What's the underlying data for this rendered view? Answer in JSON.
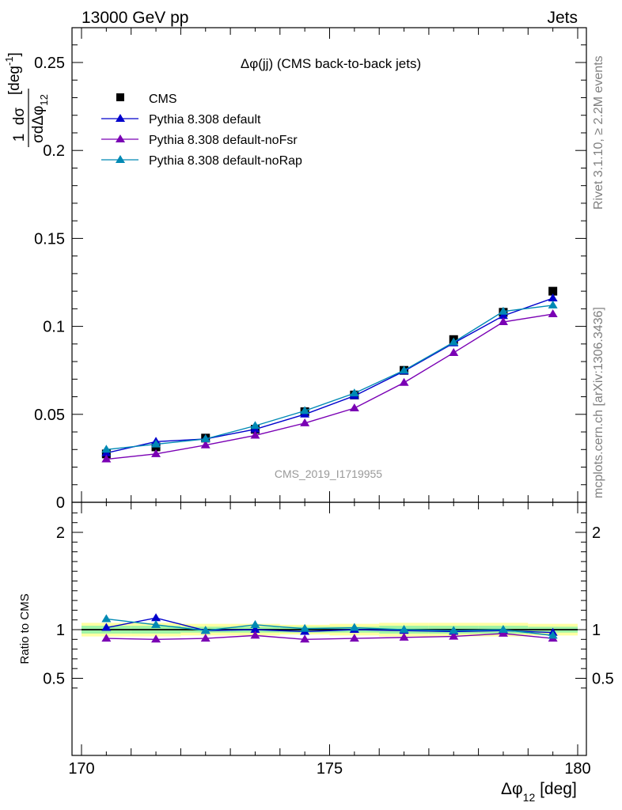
{
  "header": {
    "left": "13000 GeV pp",
    "right": "Jets"
  },
  "side_labels": {
    "rivet": "Rivet 3.1.10, ≥ 2.2M events",
    "mcplots": "mcplots.cern.ch [arXiv:1306.3436]"
  },
  "watermark": "CMS_2019_I1719955",
  "chart_data": [
    {
      "type": "line",
      "title": "Δφ(jj) (CMS back-to-back jets)",
      "xlabel": "Δφ12 [deg]",
      "ylabel": "1/σ dσ/dΔφ12 [deg⁻¹]",
      "xlim": [
        170,
        180
      ],
      "ylim": [
        0,
        0.27
      ],
      "x_ticks": [
        "170",
        "175",
        "180"
      ],
      "y_ticks": [
        "0",
        "0.05",
        "0.1",
        "0.15",
        "0.2",
        "0.25"
      ],
      "x": [
        170.5,
        171.5,
        172.5,
        173.5,
        174.5,
        175.5,
        176.5,
        177.5,
        178.5,
        179.5
      ],
      "legend_position": "top-left",
      "series": [
        {
          "name": "CMS",
          "marker": "square",
          "color": "#000000",
          "values": [
            0.0275,
            0.0315,
            0.0365,
            0.0415,
            0.0515,
            0.061,
            0.075,
            0.0925,
            0.108,
            0.12
          ]
        },
        {
          "name": "Pythia 8.308 default",
          "marker": "triangle",
          "color": "#0000cc",
          "values": [
            0.028,
            0.0345,
            0.036,
            0.0415,
            0.05,
            0.0605,
            0.0745,
            0.0905,
            0.106,
            0.116
          ]
        },
        {
          "name": "Pythia 8.308 default-noFsr",
          "marker": "triangle",
          "color": "#7a00b4",
          "values": [
            0.0245,
            0.0275,
            0.0325,
            0.038,
            0.045,
            0.0535,
            0.068,
            0.085,
            0.1025,
            0.107
          ]
        },
        {
          "name": "Pythia 8.308 default-noRap",
          "marker": "triangle",
          "color": "#0089b4",
          "values": [
            0.03,
            0.033,
            0.036,
            0.0435,
            0.052,
            0.062,
            0.075,
            0.091,
            0.1085,
            0.112
          ]
        }
      ]
    },
    {
      "type": "line",
      "ylabel": "Ratio to CMS",
      "xlim": [
        170,
        180
      ],
      "ylim": [
        0.35,
        2.25
      ],
      "y_ticks": [
        "0.5",
        "1",
        "2"
      ],
      "x": [
        170.5,
        171.5,
        172.5,
        173.5,
        174.5,
        175.5,
        176.5,
        177.5,
        178.5,
        179.5
      ],
      "reference_line": 1,
      "bands": {
        "yellow_halfwidth": [
          0.07,
          0.07,
          0.06,
          0.06,
          0.05,
          0.06,
          0.07,
          0.07,
          0.07,
          0.06
        ],
        "green_halfwidth": [
          0.04,
          0.04,
          0.03,
          0.03,
          0.03,
          0.03,
          0.04,
          0.04,
          0.04,
          0.03
        ]
      },
      "series": [
        {
          "name": "Pythia 8.308 default",
          "color": "#0000cc",
          "values": [
            1.02,
            1.12,
            0.99,
            1.0,
            0.98,
            1.0,
            0.99,
            0.98,
            0.99,
            0.97
          ]
        },
        {
          "name": "Pythia 8.308 default-noFsr",
          "color": "#7a00b4",
          "values": [
            0.91,
            0.9,
            0.91,
            0.94,
            0.9,
            0.91,
            0.92,
            0.93,
            0.96,
            0.91
          ]
        },
        {
          "name": "Pythia 8.308 default-noRap",
          "color": "#0089b4",
          "values": [
            1.11,
            1.05,
            0.99,
            1.05,
            1.01,
            1.02,
            1.0,
            0.99,
            1.0,
            0.94
          ]
        }
      ]
    }
  ]
}
